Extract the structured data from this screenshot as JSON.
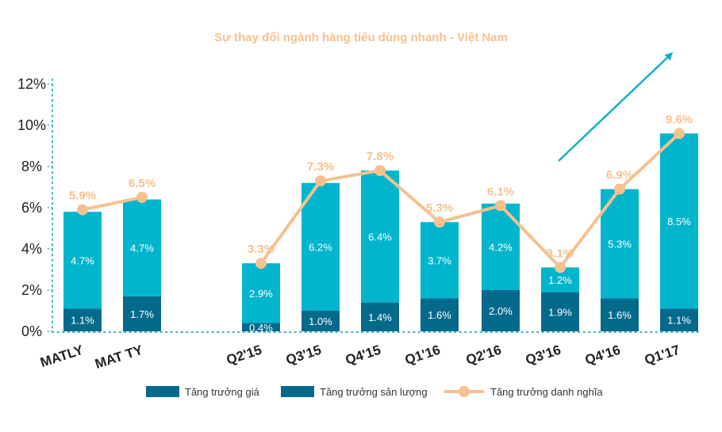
{
  "chart_data": {
    "type": "bar",
    "title": "Sự thay đổi ngành hàng tiêu dùng nhanh - Việt Nam",
    "categories": [
      "MATLY",
      "MAT TY",
      "Q2'15",
      "Q3'15",
      "Q4'15",
      "Q1'16",
      "Q2'16",
      "Q3'16",
      "Q4'16",
      "Q1'17"
    ],
    "stacked": true,
    "series": [
      {
        "name": "Tăng trưởng giá",
        "type": "bar",
        "values": [
          4.7,
          4.7,
          2.9,
          6.2,
          6.4,
          3.7,
          4.2,
          1.2,
          5.3,
          8.5
        ],
        "labels": [
          "4.7%",
          "4.7%",
          "2.9%",
          "6.2%",
          "6.4%",
          "3.7%",
          "4.2%",
          "1.2%",
          "5.3%",
          "8.5%"
        ]
      },
      {
        "name": "Tăng trưởng sản lượng",
        "type": "bar",
        "values": [
          1.1,
          1.7,
          0.4,
          1.0,
          1.4,
          1.6,
          2.0,
          1.9,
          1.6,
          1.1
        ],
        "labels": [
          "1.1%",
          "1.7%",
          "0.4%",
          "1.0%",
          "1.4%",
          "1.6%",
          "2.0%",
          "1.9%",
          "1.6%",
          "1.1%"
        ]
      },
      {
        "name": "Tăng trưởng danh nghĩa",
        "type": "line",
        "values": [
          5.9,
          6.5,
          3.3,
          7.3,
          7.8,
          5.3,
          6.1,
          3.1,
          6.9,
          9.6
        ],
        "labels": [
          "5.9%",
          "6.5%",
          "3.3%",
          "7.3%",
          "7.8%",
          "5.3%",
          "6.1%",
          "3.1%",
          "6.9%",
          "9.6%"
        ]
      }
    ],
    "ylim": [
      0,
      12
    ],
    "yticks": [
      "0%",
      "2%",
      "4%",
      "6%",
      "8%",
      "10%",
      "12%"
    ],
    "grid": false,
    "legend": "bottom",
    "trend_arrow": true,
    "colors": {
      "title": "#F6C18F",
      "price_bar": "#00B5CC",
      "volume_bar": "#046A8C",
      "nominal_line": "#F6C18F",
      "axis_dots": "#3BB3C3",
      "arrow": "#12B0C8"
    }
  }
}
